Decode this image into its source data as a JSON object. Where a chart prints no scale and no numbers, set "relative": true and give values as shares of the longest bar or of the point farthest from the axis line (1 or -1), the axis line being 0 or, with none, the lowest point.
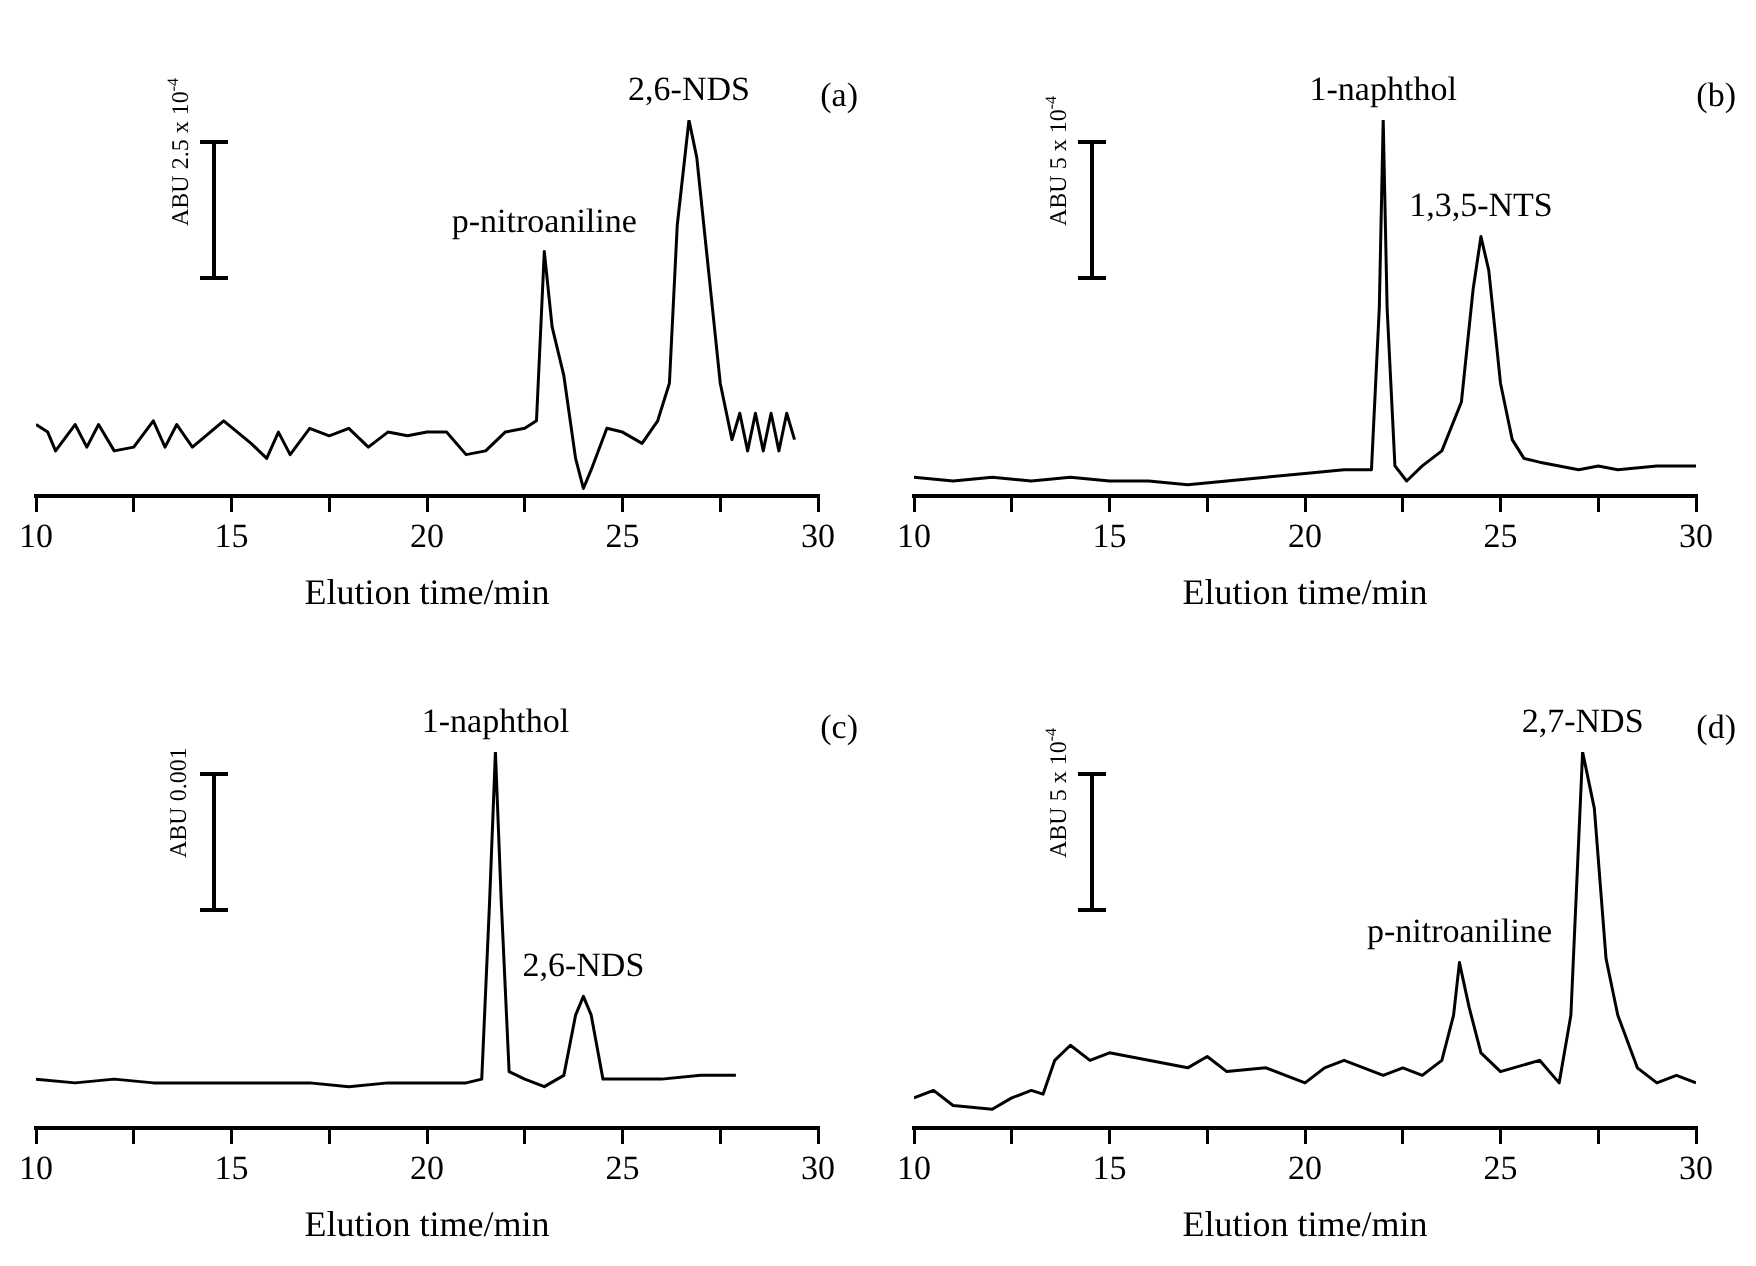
{
  "chart_data": [
    {
      "type": "line",
      "relative": true,
      "tick_labels": "x",
      "grid": false,
      "legend": false,
      "marker": "none",
      "xlabel": "Elution time/min",
      "ylabel": "ABU 2.5 x 10$^{-4}$",
      "xlim": [
        10,
        30
      ],
      "xticks": [
        10,
        {
          "value": 12.5,
          "label": null
        },
        15,
        {
          "value": 17.5,
          "label": null
        },
        20,
        {
          "value": 22.5,
          "label": null
        },
        25,
        {
          "value": 27.5,
          "label": null
        },
        30
      ],
      "annotations": [
        "(a)",
        {
          "text": "p-nitroaniline",
          "x": 23,
          "y": 0.65
        },
        {
          "text": "2,6-NDS",
          "x": 26.7,
          "y": 1
        }
      ],
      "x": [
        10,
        10.3,
        10.5,
        11,
        11.3,
        11.6,
        12,
        12.5,
        13,
        13.3,
        13.6,
        14,
        14.8,
        15.5,
        15.9,
        16.2,
        16.5,
        17,
        17.5,
        18,
        18.5,
        19,
        19.5,
        20,
        20.5,
        21,
        21.5,
        22,
        22.5,
        22.8,
        23,
        23.2,
        23.5,
        23.8,
        24,
        24.2,
        24.6,
        25,
        25.5,
        25.9,
        26.2,
        26.4,
        26.7,
        26.9,
        27.2,
        27.5,
        27.8,
        28,
        28.2,
        28.4,
        28.6,
        28.8,
        29,
        29.2,
        29.4
      ],
      "series": [
        {
          "color": "#000000",
          "values": [
            0.19,
            0.17,
            0.12,
            0.19,
            0.13,
            0.19,
            0.12,
            0.13,
            0.2,
            0.13,
            0.19,
            0.13,
            0.2,
            0.14,
            0.1,
            0.17,
            0.11,
            0.18,
            0.16,
            0.18,
            0.13,
            0.17,
            0.16,
            0.17,
            0.17,
            0.11,
            0.12,
            0.17,
            0.18,
            0.2,
            0.65,
            0.45,
            0.32,
            0.1,
            0.02,
            0.07,
            0.18,
            0.17,
            0.14,
            0.2,
            0.3,
            0.72,
            1,
            0.9,
            0.6,
            0.3,
            0.15,
            0.22,
            0.12,
            0.22,
            0.12,
            0.22,
            0.12,
            0.22,
            0.15
          ]
        }
      ]
    },
    {
      "type": "line",
      "relative": true,
      "tick_labels": "x",
      "grid": false,
      "legend": false,
      "marker": "none",
      "xlabel": "Elution time/min",
      "ylabel": "ABU 5 x 10$^{-4}$",
      "xlim": [
        10,
        30
      ],
      "xticks": [
        10,
        {
          "value": 12.5,
          "label": null
        },
        15,
        {
          "value": 17.5,
          "label": null
        },
        20,
        {
          "value": 22.5,
          "label": null
        },
        25,
        {
          "value": 27.5,
          "label": null
        },
        30
      ],
      "annotations": [
        "(b)",
        {
          "text": "1-naphthol",
          "x": 22,
          "y": 1
        },
        {
          "text": "1,3,5-NTS",
          "x": 24.5,
          "y": 0.69
        }
      ],
      "x": [
        10,
        11,
        12,
        13,
        14,
        15,
        16,
        17,
        18,
        19,
        20,
        21,
        21.7,
        21.9,
        22,
        22.1,
        22.3,
        22.6,
        23,
        23.5,
        24,
        24.3,
        24.5,
        24.7,
        25,
        25.3,
        25.6,
        26,
        27,
        27.5,
        28,
        29,
        30
      ],
      "series": [
        {
          "color": "#000000",
          "values": [
            0.05,
            0.04,
            0.05,
            0.04,
            0.05,
            0.04,
            0.04,
            0.03,
            0.04,
            0.05,
            0.06,
            0.07,
            0.07,
            0.5,
            1,
            0.5,
            0.08,
            0.04,
            0.08,
            0.12,
            0.25,
            0.55,
            0.69,
            0.6,
            0.3,
            0.15,
            0.1,
            0.09,
            0.07,
            0.08,
            0.07,
            0.08,
            0.08
          ]
        }
      ]
    },
    {
      "type": "line",
      "relative": true,
      "tick_labels": "x",
      "grid": false,
      "legend": false,
      "marker": "none",
      "xlabel": "Elution time/min",
      "ylabel": "ABU 0.001",
      "xlim": [
        10,
        30
      ],
      "xticks": [
        10,
        {
          "value": 12.5,
          "label": null
        },
        15,
        {
          "value": 17.5,
          "label": null
        },
        20,
        {
          "value": 22.5,
          "label": null
        },
        25,
        {
          "value": 27.5,
          "label": null
        },
        30
      ],
      "annotations": [
        "(c)",
        {
          "text": "1-naphthol",
          "x": 21.75,
          "y": 1
        },
        {
          "text": "2,6-NDS",
          "x": 24,
          "y": 0.35
        }
      ],
      "x": [
        10,
        11,
        12,
        13,
        14,
        15,
        16,
        17,
        18,
        19,
        20,
        21,
        21.4,
        21.6,
        21.75,
        21.9,
        22.1,
        22.5,
        23,
        23.5,
        23.8,
        24,
        24.2,
        24.5,
        25,
        26,
        27,
        27.9
      ],
      "series": [
        {
          "color": "#000000",
          "values": [
            0.13,
            0.12,
            0.13,
            0.12,
            0.12,
            0.12,
            0.12,
            0.12,
            0.11,
            0.12,
            0.12,
            0.12,
            0.13,
            0.6,
            1,
            0.6,
            0.15,
            0.13,
            0.11,
            0.14,
            0.3,
            0.35,
            0.3,
            0.13,
            0.13,
            0.13,
            0.14,
            0.14
          ]
        }
      ]
    },
    {
      "type": "line",
      "relative": true,
      "tick_labels": "x",
      "grid": false,
      "legend": false,
      "marker": "none",
      "xlabel": "Elution time/min",
      "ylabel": "ABU 5 x 10$^{-4}$",
      "xlim": [
        10,
        30
      ],
      "xticks": [
        10,
        {
          "value": 12.5,
          "label": null
        },
        15,
        {
          "value": 17.5,
          "label": null
        },
        20,
        {
          "value": 22.5,
          "label": null
        },
        25,
        {
          "value": 27.5,
          "label": null
        },
        30
      ],
      "annotations": [
        "(d)",
        {
          "text": "p-nitroaniline",
          "x": 23.95,
          "y": 0.44
        },
        {
          "text": "2,7-NDS",
          "x": 27.1,
          "y": 1
        }
      ],
      "x": [
        10,
        10.5,
        11,
        12,
        12.5,
        13,
        13.3,
        13.6,
        14,
        14.5,
        15,
        16,
        17,
        17.5,
        18,
        19,
        20,
        20.5,
        21,
        22,
        22.5,
        23,
        23.5,
        23.8,
        23.95,
        24.2,
        24.5,
        25,
        26,
        26.5,
        26.8,
        27.1,
        27.4,
        27.7,
        28,
        28.5,
        29,
        29.5,
        30
      ],
      "series": [
        {
          "color": "#000000",
          "values": [
            0.08,
            0.1,
            0.06,
            0.05,
            0.08,
            0.1,
            0.09,
            0.18,
            0.22,
            0.18,
            0.2,
            0.18,
            0.16,
            0.19,
            0.15,
            0.16,
            0.12,
            0.16,
            0.18,
            0.14,
            0.16,
            0.14,
            0.18,
            0.3,
            0.44,
            0.32,
            0.2,
            0.15,
            0.18,
            0.12,
            0.3,
            1,
            0.85,
            0.45,
            0.3,
            0.16,
            0.12,
            0.14,
            0.12
          ]
        }
      ]
    }
  ]
}
